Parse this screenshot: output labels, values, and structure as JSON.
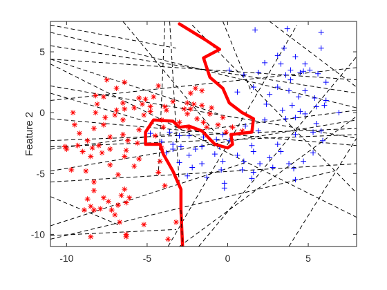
{
  "chart_data": {
    "type": "scatter",
    "title": "",
    "xlabel": "",
    "ylabel": "Feature 2",
    "xlim": [
      -11,
      8
    ],
    "ylim": [
      -11,
      7.5
    ],
    "xticks": [
      -10,
      -5,
      0,
      5
    ],
    "yticks": [
      -10,
      -5,
      0,
      5
    ],
    "grid": false,
    "colors": {
      "class1": "#ff0000",
      "class2": "#0000ff",
      "boundary": "#ff0000",
      "lines": "#000000"
    },
    "series": [
      {
        "marker": "asterisk",
        "color": "#ff0000",
        "points": [
          [
            -7.5,
            2.7
          ],
          [
            -6.4,
            2.5
          ],
          [
            -6.9,
            2.0
          ],
          [
            -4.3,
            2.2
          ],
          [
            -2.0,
            2.0
          ],
          [
            -2.3,
            1.6
          ],
          [
            -1.6,
            1.8
          ],
          [
            -4.6,
            1.3
          ],
          [
            -8.2,
            1.4
          ],
          [
            -7.7,
            1.3
          ],
          [
            -5.5,
            1.2
          ],
          [
            -5.1,
            1.1
          ],
          [
            -2.5,
            0.8
          ],
          [
            -6.5,
            0.8
          ],
          [
            -8.1,
            0.7
          ],
          [
            -4.8,
            0.5
          ],
          [
            -5.3,
            0.7
          ],
          [
            -3.9,
            0.5
          ],
          [
            -2.1,
            0.7
          ],
          [
            -1.6,
            0.6
          ],
          [
            -1.0,
            0.4
          ],
          [
            -6.9,
            0.2
          ],
          [
            -6.4,
            0.3
          ],
          [
            -8.2,
            0.0
          ],
          [
            -9.6,
            0.0
          ],
          [
            -7.0,
            -0.2
          ],
          [
            -5.2,
            -0.2
          ],
          [
            -4.8,
            0.1
          ],
          [
            -3.8,
            0.2
          ],
          [
            -2.5,
            -0.1
          ],
          [
            -1.1,
            -0.1
          ],
          [
            -2.7,
            0.3
          ],
          [
            -6.5,
            -0.6
          ],
          [
            -4.1,
            -0.6
          ],
          [
            -3.0,
            -0.8
          ],
          [
            -0.3,
            -0.4
          ],
          [
            -9.5,
            -1.0
          ],
          [
            -7.7,
            -1.0
          ],
          [
            -8.3,
            -1.3
          ],
          [
            -5.5,
            -1.4
          ],
          [
            -4.0,
            -1.2
          ],
          [
            -2.4,
            -1.3
          ],
          [
            -1.3,
            -1.2
          ],
          [
            -0.6,
            -1.0
          ],
          [
            0.3,
            -1.2
          ],
          [
            -9.2,
            -1.7
          ],
          [
            -7.3,
            -2.0
          ],
          [
            -6.5,
            -1.8
          ],
          [
            -4.5,
            -1.9
          ],
          [
            -0.1,
            -1.6
          ],
          [
            0.9,
            -1.5
          ],
          [
            -8.7,
            -2.3
          ],
          [
            -8.0,
            -2.7
          ],
          [
            -6.2,
            -2.3
          ],
          [
            -5.6,
            -2.5
          ],
          [
            -9.3,
            -2.7
          ],
          [
            -10.1,
            -2.8
          ],
          [
            -8.4,
            -2.9
          ],
          [
            -7.3,
            -3.0
          ],
          [
            -6.3,
            -3.1
          ],
          [
            -4.1,
            -2.9
          ],
          [
            -9.0,
            -3.2
          ],
          [
            -7.8,
            -3.3
          ],
          [
            -10.0,
            -3.0
          ],
          [
            -8.5,
            -3.6
          ],
          [
            -6.4,
            -3.6
          ],
          [
            -5.5,
            -3.8
          ],
          [
            -4.2,
            -4.0
          ],
          [
            -7.3,
            -4.3
          ],
          [
            -5.8,
            -4.4
          ],
          [
            -9.7,
            -4.7
          ],
          [
            -8.8,
            -4.8
          ],
          [
            -6.8,
            -5.1
          ],
          [
            -4.3,
            -4.9
          ],
          [
            -8.3,
            -5.7
          ],
          [
            -3.9,
            -6.0
          ],
          [
            -6.4,
            -6.3
          ],
          [
            -6.6,
            -6.8
          ],
          [
            -8.3,
            -6.4
          ],
          [
            -7.7,
            -7.0
          ],
          [
            -6.1,
            -7.0
          ],
          [
            -8.7,
            -7.1
          ],
          [
            -8.5,
            -7.7
          ],
          [
            -7.4,
            -7.3
          ],
          [
            -6.8,
            -7.6
          ],
          [
            -6.3,
            -7.4
          ],
          [
            -7.2,
            -8.0
          ],
          [
            -8.9,
            -8.0
          ],
          [
            -8.3,
            -8.0
          ],
          [
            -7.9,
            -7.9
          ],
          [
            -7.0,
            -8.4
          ],
          [
            -6.7,
            -9.0
          ],
          [
            -5.2,
            -9.2
          ],
          [
            -3.2,
            -9.0
          ],
          [
            -8.5,
            -10.2
          ],
          [
            -6.3,
            -10.2
          ],
          [
            -6.3,
            -10.0
          ],
          [
            -3.7,
            -10.4
          ],
          [
            -2.3,
            0.3
          ],
          [
            -1.9,
            -0.5
          ],
          [
            -7.6,
            -0.4
          ],
          [
            -5.8,
            0.4
          ],
          [
            -3.4,
            0.9
          ],
          [
            -1.5,
            -0.8
          ]
        ]
      },
      {
        "marker": "plus",
        "color": "#0000ff",
        "points": [
          [
            1.7,
            6.8
          ],
          [
            3.7,
            6.9
          ],
          [
            5.8,
            6.6
          ],
          [
            3.5,
            5.3
          ],
          [
            5.8,
            5.3
          ],
          [
            3.1,
            4.7
          ],
          [
            4.2,
            4.6
          ],
          [
            4.8,
            4.0
          ],
          [
            2.3,
            4.1
          ],
          [
            3.3,
            4.0
          ],
          [
            3.9,
            3.5
          ],
          [
            0.1,
            3.5
          ],
          [
            1.9,
            3.3
          ],
          [
            4.5,
            3.3
          ],
          [
            1.0,
            3.1
          ],
          [
            5.1,
            3.5
          ],
          [
            3.6,
            3.1
          ],
          [
            4.7,
            3.4
          ],
          [
            5.6,
            3.2
          ],
          [
            3.9,
            2.7
          ],
          [
            6.1,
            2.5
          ],
          [
            1.6,
            2.1
          ],
          [
            3.1,
            2.1
          ],
          [
            0.6,
            1.7
          ],
          [
            3.8,
            1.8
          ],
          [
            4.8,
            1.8
          ],
          [
            2.6,
            1.5
          ],
          [
            4.4,
            1.3
          ],
          [
            5.4,
            1.2
          ],
          [
            6.1,
            1.0
          ],
          [
            2.4,
            0.7
          ],
          [
            4.0,
            0.6
          ],
          [
            5.5,
            0.5
          ],
          [
            6.0,
            0.6
          ],
          [
            3.4,
            0.2
          ],
          [
            4.5,
            0.1
          ],
          [
            6.9,
            0.0
          ],
          [
            2.3,
            -0.6
          ],
          [
            3.6,
            -0.5
          ],
          [
            4.2,
            -0.4
          ],
          [
            1.1,
            -1.1
          ],
          [
            5.5,
            -0.9
          ],
          [
            5.3,
            -1.6
          ],
          [
            5.8,
            -1.5
          ],
          [
            -0.3,
            -1.8
          ],
          [
            1.9,
            -1.5
          ],
          [
            4.2,
            -1.8
          ],
          [
            -3.0,
            -1.9
          ],
          [
            -2.4,
            -1.9
          ],
          [
            -1.5,
            -2.0
          ],
          [
            -0.7,
            -2.2
          ],
          [
            0.1,
            -2.3
          ],
          [
            -4.1,
            -2.4
          ],
          [
            -3.4,
            -2.6
          ],
          [
            -2.9,
            -2.8
          ],
          [
            -1.6,
            -2.8
          ],
          [
            -0.5,
            -2.8
          ],
          [
            1.5,
            -2.7
          ],
          [
            3.1,
            -2.6
          ],
          [
            5.9,
            -2.3
          ],
          [
            -3.8,
            -3.3
          ],
          [
            -2.4,
            -3.5
          ],
          [
            -0.8,
            -3.4
          ],
          [
            0.6,
            -3.5
          ],
          [
            1.6,
            -3.2
          ],
          [
            3.3,
            -3.2
          ],
          [
            5.3,
            -3.3
          ],
          [
            -3.0,
            -4.1
          ],
          [
            -1.6,
            -4.2
          ],
          [
            -0.3,
            -4.0
          ],
          [
            1.0,
            -4.0
          ],
          [
            2.0,
            -4.2
          ],
          [
            3.8,
            -4.2
          ],
          [
            4.7,
            -4.0
          ],
          [
            -2.2,
            -4.5
          ],
          [
            -0.4,
            -4.7
          ],
          [
            0.9,
            -4.7
          ],
          [
            2.8,
            -4.5
          ],
          [
            4.1,
            -4.6
          ],
          [
            -2.5,
            -5.2
          ],
          [
            -1.3,
            -5.3
          ],
          [
            1.5,
            -5.4
          ],
          [
            4.2,
            -5.5
          ],
          [
            -0.2,
            -5.8
          ],
          [
            -0.2,
            -6.2
          ],
          [
            1.6,
            -4.9
          ],
          [
            -3.6,
            -1.6
          ],
          [
            -4.8,
            -1.7
          ],
          [
            -2.0,
            -3.0
          ],
          [
            -3.4,
            -3.0
          ],
          [
            2.6,
            -3.7
          ],
          [
            4.8,
            -0.1
          ]
        ]
      }
    ],
    "boundary": [
      [
        -3.0,
        7.3
      ],
      [
        -1.4,
        6.0
      ],
      [
        -0.5,
        5.2
      ],
      [
        -1.5,
        4.5
      ],
      [
        -1.1,
        2.9
      ],
      [
        -0.3,
        2.0
      ],
      [
        0.1,
        0.8
      ],
      [
        0.9,
        0.0
      ],
      [
        1.6,
        -0.5
      ],
      [
        1.5,
        -1.6
      ],
      [
        0.2,
        -1.8
      ],
      [
        0.3,
        -2.6
      ],
      [
        0.0,
        -2.9
      ],
      [
        -0.8,
        -2.6
      ],
      [
        -1.6,
        -1.5
      ],
      [
        -2.4,
        -1.1
      ],
      [
        -3.0,
        -1.2
      ],
      [
        -3.4,
        -0.7
      ],
      [
        -4.6,
        -0.6
      ],
      [
        -5.1,
        -1.6
      ],
      [
        -5.1,
        -2.6
      ],
      [
        -4.2,
        -2.6
      ],
      [
        -4.0,
        -3.4
      ],
      [
        -3.4,
        -4.8
      ],
      [
        -2.9,
        -6.3
      ],
      [
        -2.9,
        -8.0
      ],
      [
        -2.8,
        -11.0
      ]
    ],
    "lines": [
      [
        -11,
        7.2,
        -3.2,
        5.3
      ],
      [
        -11,
        6.6,
        8,
        0.4
      ],
      [
        -11,
        5.5,
        8,
        1.6
      ],
      [
        -11,
        4.4,
        8,
        2.7
      ],
      [
        -11,
        4.4,
        -0.6,
        -0.1
      ],
      [
        -11,
        2.2,
        8,
        -2.1
      ],
      [
        -11,
        1.0,
        8,
        3.7
      ],
      [
        -11,
        -0.5,
        8,
        -2.7
      ],
      [
        -11,
        -2.3,
        8,
        -1.3
      ],
      [
        -11,
        -2.8,
        8,
        -1.8
      ],
      [
        -11,
        -4.8,
        8,
        -0.6
      ],
      [
        -11,
        -5.7,
        8,
        -4.2
      ],
      [
        -11,
        -9.3,
        1.1,
        -4.1
      ],
      [
        -11,
        -10.1,
        -3.2,
        -9.6
      ],
      [
        -3.7,
        -11,
        4.3,
        7.2
      ],
      [
        -2.2,
        7.2,
        8,
        -6.6
      ],
      [
        -3.9,
        7.5,
        -4.3,
        -5.1
      ],
      [
        -1.8,
        -11,
        8,
        4.6
      ],
      [
        -11,
        4.0,
        8,
        -8.6
      ],
      [
        -11,
        1.6,
        -4.1,
        -1.1
      ],
      [
        3.8,
        -11,
        8,
        -2.1
      ],
      [
        -3.6,
        7.5,
        -3.0,
        -6.0
      ],
      [
        -3.0,
        -11,
        8,
        -0.3
      ],
      [
        -6.5,
        7.5,
        -0.8,
        -1.6
      ],
      [
        -11,
        -10.4,
        6.6,
        -4.8
      ],
      [
        -11,
        -3.0,
        8,
        0.2
      ],
      [
        -11,
        -6.9,
        -6.8,
        -9.2
      ],
      [
        -0.3,
        7.5,
        1.5,
        1.6
      ],
      [
        2.6,
        7.5,
        8,
        2.1
      ]
    ]
  }
}
